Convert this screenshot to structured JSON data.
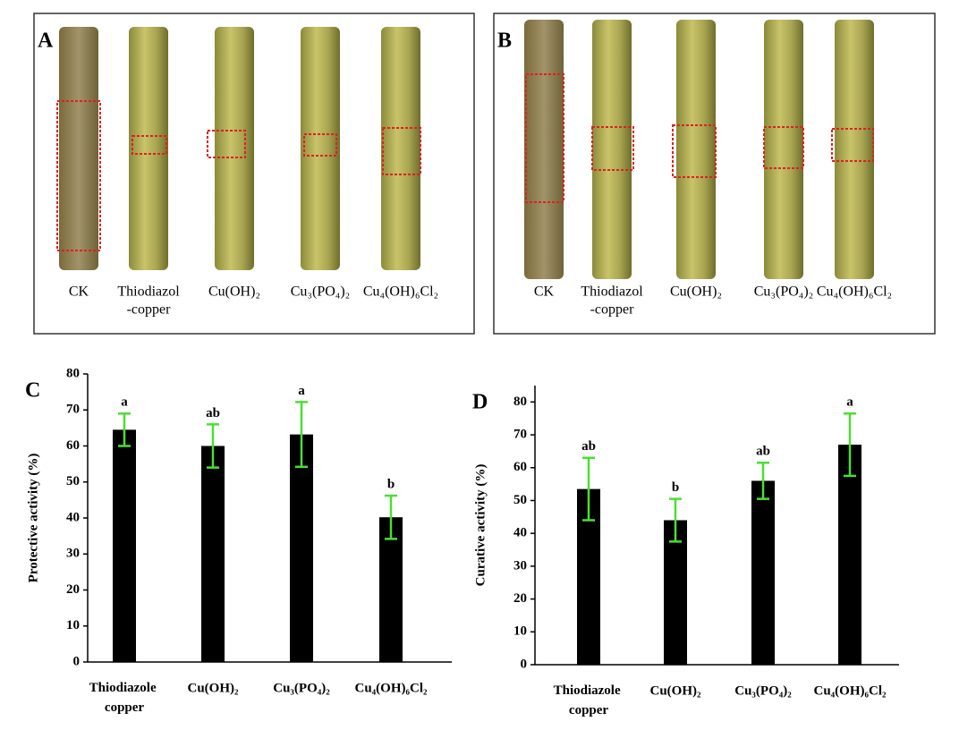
{
  "panels": [
    {
      "letter": "A",
      "labels": [
        [
          "CK"
        ],
        [
          "Thiodiazol",
          "-copper"
        ],
        [
          "Cu(OH)₂"
        ],
        [
          "Cu₃(PO₄)₂"
        ],
        [
          "Cu₄(OH)₆Cl₂"
        ]
      ]
    },
    {
      "letter": "B",
      "labels": [
        [
          "CK"
        ],
        [
          "Thiodiazol",
          "-copper"
        ],
        [
          "Cu(OH)₂"
        ],
        [
          "Cu₃(PO₄)₂"
        ],
        [
          "Cu₄(OH)₆Cl₂"
        ]
      ]
    }
  ],
  "chart_data": [
    {
      "type": "bar",
      "panel": "C",
      "y_label": "Protective activity (%)",
      "categories": [
        "Thiodiazole copper",
        "Cu(OH)₂",
        "Cu₃(PO₄)₂",
        "Cu₄(OH)₆Cl₂"
      ],
      "values": [
        64.5,
        60,
        63.2,
        40.2
      ],
      "errors": [
        4.5,
        6,
        9,
        6
      ],
      "annotations": [
        "a",
        "ab",
        "a",
        "b"
      ],
      "color": "#000000",
      "error_color": "#4cde34",
      "ylim": [
        0,
        80
      ],
      "yticks": [
        0,
        10,
        20,
        30,
        40,
        50,
        60,
        70,
        80
      ]
    },
    {
      "type": "bar",
      "panel": "D",
      "y_label": "Curative activity (%)",
      "categories": [
        "Thiodiazole copper",
        "Cu(OH)₂",
        "Cu₃(PO₄)₂",
        "Cu₄(OH)₆Cl₂"
      ],
      "values": [
        53.5,
        44,
        56,
        67
      ],
      "errors": [
        9.5,
        6.5,
        5.5,
        9.5
      ],
      "annotations": [
        "ab",
        "b",
        "ab",
        "a"
      ],
      "color": "#000000",
      "error_color": "#4cde34",
      "ylim": [
        0,
        85
      ],
      "yticks": [
        0,
        10,
        20,
        30,
        40,
        50,
        60,
        70,
        80
      ]
    }
  ]
}
